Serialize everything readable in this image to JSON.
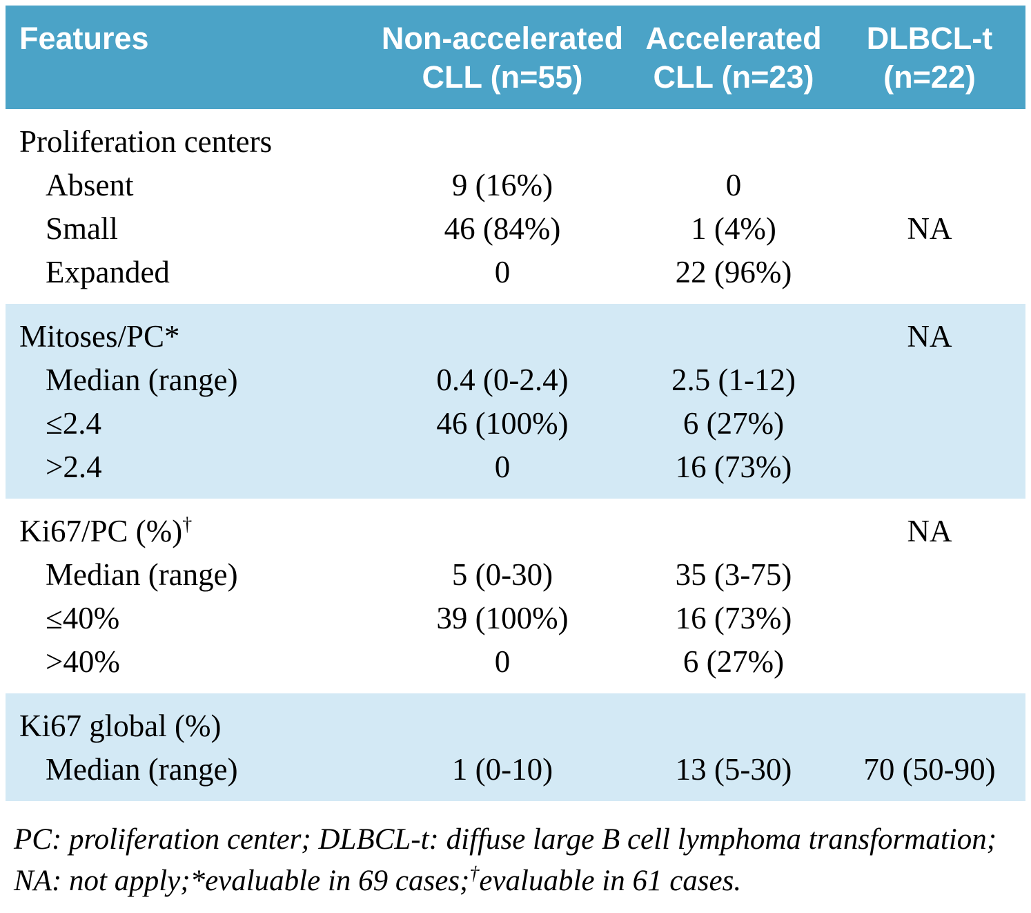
{
  "colors": {
    "header_bg": "#4ba3c7",
    "shaded_row_bg": "#d3e9f5",
    "header_text": "#ffffff",
    "body_text": "#000000"
  },
  "header": {
    "features": "Features",
    "col1": {
      "line1": "Non-accelerated",
      "line2": "CLL (n=55)"
    },
    "col2": {
      "line1": "Accelerated",
      "line2": "CLL (n=23)"
    },
    "col3": {
      "line1": "DLBCL-t",
      "line2": "(n=22)"
    }
  },
  "sections": [
    {
      "rows": [
        {
          "label": "Proliferation centers",
          "c1": "",
          "c2": "",
          "c3": ""
        },
        {
          "label": "Absent",
          "c1": "9 (16%)",
          "c2": "0",
          "c3": ""
        },
        {
          "label": "Small",
          "c1": "46 (84%)",
          "c2": "1 (4%)",
          "c3": "NA"
        },
        {
          "label": "Expanded",
          "c1": "0",
          "c2": "22 (96%)",
          "c3": ""
        }
      ]
    },
    {
      "rows": [
        {
          "label": "Mitoses/PC*",
          "c1": "",
          "c2": "",
          "c3": "NA"
        },
        {
          "label": "Median (range)",
          "c1": "0.4 (0-2.4)",
          "c2": "2.5 (1-12)",
          "c3": ""
        },
        {
          "label": "≤2.4",
          "c1": "46 (100%)",
          "c2": "6 (27%)",
          "c3": ""
        },
        {
          "label": ">2.4",
          "c1": "0",
          "c2": "16 (73%)",
          "c3": ""
        }
      ]
    },
    {
      "rows": [
        {
          "label": "Ki67/PC (%)",
          "label_sup": "†",
          "c1": "",
          "c2": "",
          "c3": "NA"
        },
        {
          "label": "Median (range)",
          "c1": "5 (0-30)",
          "c2": "35 (3-75)",
          "c3": ""
        },
        {
          "label": "≤40%",
          "c1": "39 (100%)",
          "c2": "16 (73%)",
          "c3": ""
        },
        {
          "label": ">40%",
          "c1": "0",
          "c2": "6 (27%)",
          "c3": ""
        }
      ]
    },
    {
      "rows": [
        {
          "label": "Ki67 global (%)",
          "c1": "",
          "c2": "",
          "c3": ""
        },
        {
          "label": "Median (range)",
          "c1": "1 (0-10)",
          "c2": "13 (5-30)",
          "c3": "70 (50-90)"
        }
      ]
    }
  ],
  "footnote": {
    "line1": "PC: proliferation center; DLBCL-t: diffuse large B cell lymphoma transformation;",
    "line2_part1": "NA: not apply;*evaluable in 69 cases;",
    "line2_sup": "†",
    "line2_part2": "evaluable in 61 cases."
  }
}
